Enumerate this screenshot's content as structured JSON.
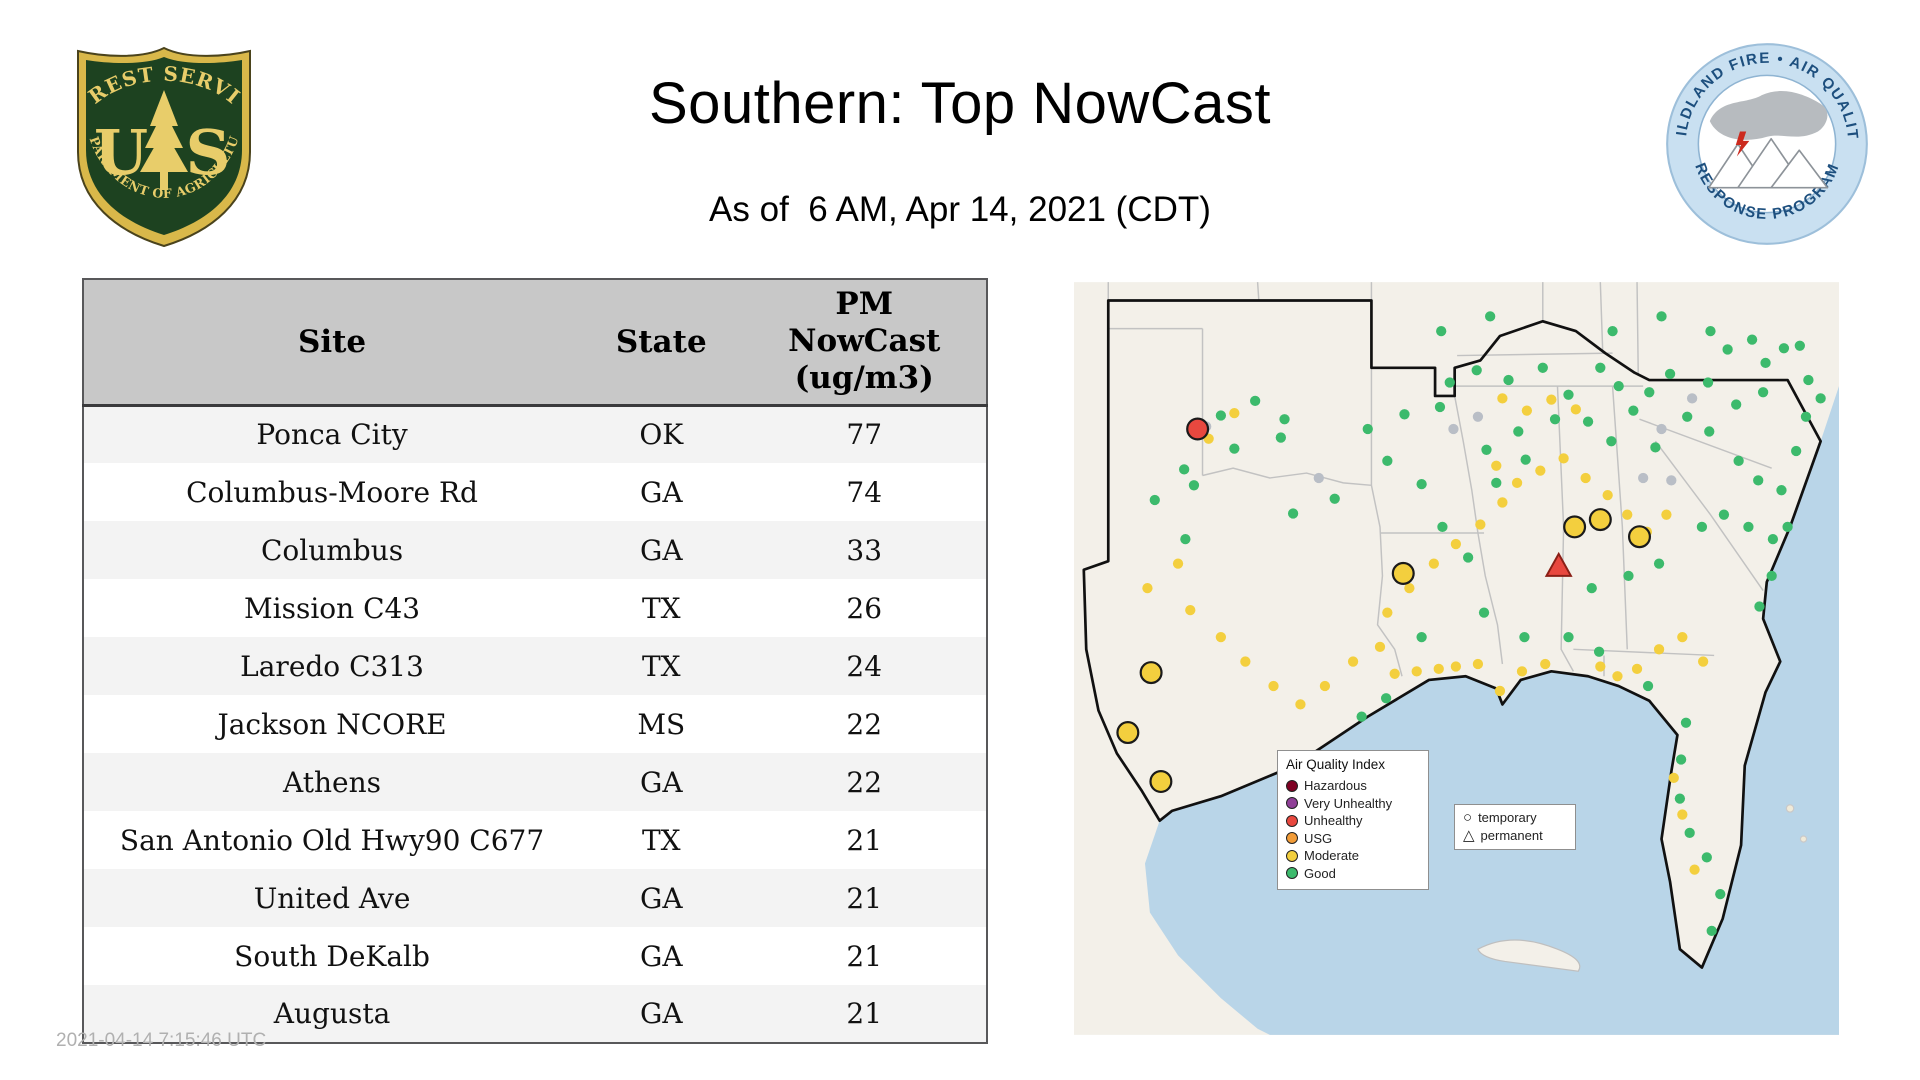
{
  "header": {
    "title": "Southern: Top NowCast",
    "subtitle": "As of  6 AM, Apr 14, 2021 (CDT)"
  },
  "logos": {
    "usfs": {
      "arc_top": "FOREST SERVICE",
      "letter_u": "U",
      "letter_s": "S",
      "arc_bottom": "DEPARTMENT OF AGRICULTURE"
    },
    "wfaqrp": {
      "arc_top": "WILDLAND FIRE • AIR QUALITY",
      "arc_bottom": "RESPONSE PROGRAM"
    }
  },
  "table": {
    "headers": [
      "Site",
      "State",
      "PM NowCast (ug/m3)"
    ],
    "header_pm_lines": [
      "PM",
      "NowCast",
      "(ug/m3)"
    ],
    "rows": [
      [
        "Ponca City",
        "OK",
        "77"
      ],
      [
        "Columbus-Moore Rd",
        "GA",
        "74"
      ],
      [
        "Columbus",
        "GA",
        "33"
      ],
      [
        "Mission C43",
        "TX",
        "26"
      ],
      [
        "Laredo C313",
        "TX",
        "24"
      ],
      [
        "Jackson NCORE",
        "MS",
        "22"
      ],
      [
        "Athens",
        "GA",
        "22"
      ],
      [
        "San Antonio Old Hwy90 C677",
        "TX",
        "21"
      ],
      [
        "United Ave",
        "GA",
        "21"
      ],
      [
        "South DeKalb",
        "GA",
        "21"
      ],
      [
        "Augusta",
        "GA",
        "21"
      ]
    ]
  },
  "map": {
    "colors": {
      "hazardous": "#7e0023",
      "very_unhealthy": "#8f3f97",
      "unhealthy": "#e8483f",
      "usg": "#f29c38",
      "moderate": "#f3cf3e",
      "good": "#3cba6c",
      "no_data": "#b9bec6",
      "ocean": "#b9d5e8",
      "land": "#f3f0e9"
    },
    "legend": {
      "title": "Air Quality Index",
      "items": [
        {
          "label": "Hazardous",
          "color": "#7e0023",
          "icon": "hazardous-dot-icon"
        },
        {
          "label": "Very Unhealthy",
          "color": "#8f3f97",
          "icon": "very-unhealthy-dot-icon"
        },
        {
          "label": "Unhealthy",
          "color": "#e8483f",
          "icon": "unhealthy-dot-icon"
        },
        {
          "label": "USG",
          "color": "#f29c38",
          "icon": "usg-dot-icon"
        },
        {
          "label": "Moderate",
          "color": "#f3cf3e",
          "icon": "moderate-dot-icon"
        },
        {
          "label": "Good",
          "color": "#3cba6c",
          "icon": "good-dot-icon"
        }
      ]
    },
    "shape_legend": {
      "items": [
        {
          "label": "temporary",
          "glyph": "○",
          "icon": "temporary-circle-icon"
        },
        {
          "label": "permanent",
          "glyph": "△",
          "icon": "permanent-triangle-icon"
        }
      ]
    },
    "markers": {
      "good": [
        [
          66,
          178
        ],
        [
          90,
          153
        ],
        [
          98,
          166
        ],
        [
          120,
          109
        ],
        [
          131,
          136
        ],
        [
          148,
          97
        ],
        [
          169,
          127
        ],
        [
          172,
          112
        ],
        [
          179,
          189
        ],
        [
          91,
          210
        ],
        [
          213,
          177
        ],
        [
          235,
          355
        ],
        [
          240,
          120
        ],
        [
          255,
          340
        ],
        [
          256,
          146
        ],
        [
          270,
          108
        ],
        [
          284,
          165
        ],
        [
          284,
          290
        ],
        [
          299,
          102
        ],
        [
          300,
          40
        ],
        [
          301,
          200
        ],
        [
          307,
          82
        ],
        [
          322,
          225
        ],
        [
          329,
          72
        ],
        [
          335,
          270
        ],
        [
          337,
          137
        ],
        [
          340,
          28
        ],
        [
          345,
          164
        ],
        [
          355,
          80
        ],
        [
          363,
          122
        ],
        [
          368,
          290
        ],
        [
          369,
          145
        ],
        [
          383,
          70
        ],
        [
          393,
          112
        ],
        [
          404,
          92
        ],
        [
          404,
          290
        ],
        [
          420,
          114
        ],
        [
          423,
          250
        ],
        [
          429,
          302
        ],
        [
          430,
          70
        ],
        [
          439,
          130
        ],
        [
          440,
          40
        ],
        [
          445,
          85
        ],
        [
          453,
          240
        ],
        [
          457,
          105
        ],
        [
          469,
          330
        ],
        [
          470,
          90
        ],
        [
          475,
          135
        ],
        [
          478,
          230
        ],
        [
          496,
          390
        ],
        [
          480,
          28
        ],
        [
          487,
          75
        ],
        [
          500,
          360
        ],
        [
          495,
          422
        ],
        [
          501,
          110
        ],
        [
          503,
          450
        ],
        [
          513,
          200
        ],
        [
          517,
          470
        ],
        [
          518,
          82
        ],
        [
          519,
          122
        ],
        [
          520,
          40
        ],
        [
          521,
          530
        ],
        [
          528,
          500
        ],
        [
          531,
          190
        ],
        [
          534,
          55
        ],
        [
          541,
          100
        ],
        [
          543,
          146
        ],
        [
          551,
          200
        ],
        [
          554,
          47
        ],
        [
          559,
          162
        ],
        [
          560,
          265
        ],
        [
          563,
          90
        ],
        [
          565,
          66
        ],
        [
          570,
          240
        ],
        [
          571,
          210
        ],
        [
          578,
          170
        ],
        [
          580,
          54
        ],
        [
          583,
          200
        ],
        [
          590,
          138
        ],
        [
          593,
          52
        ],
        [
          598,
          110
        ],
        [
          600,
          80
        ],
        [
          610,
          95
        ]
      ],
      "moderate": [
        [
          60,
          250
        ],
        [
          85,
          230
        ],
        [
          95,
          268
        ],
        [
          110,
          128
        ],
        [
          120,
          290
        ],
        [
          131,
          107
        ],
        [
          140,
          310
        ],
        [
          163,
          330
        ],
        [
          185,
          345
        ],
        [
          205,
          330
        ],
        [
          228,
          310
        ],
        [
          250,
          298
        ],
        [
          256,
          270
        ],
        [
          262,
          320
        ],
        [
          274,
          250
        ],
        [
          280,
          318
        ],
        [
          294,
          230
        ],
        [
          298,
          316
        ],
        [
          312,
          214
        ],
        [
          312,
          314
        ],
        [
          330,
          312
        ],
        [
          332,
          198
        ],
        [
          345,
          150
        ],
        [
          348,
          334
        ],
        [
          350,
          95
        ],
        [
          350,
          180
        ],
        [
          362,
          164
        ],
        [
          366,
          318
        ],
        [
          370,
          105
        ],
        [
          381,
          154
        ],
        [
          385,
          312
        ],
        [
          390,
          96
        ],
        [
          400,
          144
        ],
        [
          410,
          104
        ],
        [
          418,
          160
        ],
        [
          430,
          314
        ],
        [
          436,
          174
        ],
        [
          444,
          322
        ],
        [
          452,
          190
        ],
        [
          460,
          316
        ],
        [
          468,
          204
        ],
        [
          478,
          300
        ],
        [
          484,
          190
        ],
        [
          490,
          405
        ],
        [
          497,
          290
        ],
        [
          497,
          435
        ],
        [
          507,
          480
        ],
        [
          514,
          310
        ]
      ],
      "no_data": [
        [
          108,
          118
        ],
        [
          200,
          160
        ],
        [
          310,
          120
        ],
        [
          330,
          110
        ],
        [
          465,
          160
        ],
        [
          480,
          120
        ],
        [
          488,
          162
        ],
        [
          505,
          95
        ]
      ],
      "moderate_large": [
        [
          269,
          238
        ],
        [
          409,
          200
        ],
        [
          430,
          194
        ],
        [
          462,
          208
        ],
        [
          63,
          319
        ],
        [
          44,
          368
        ],
        [
          71,
          408
        ]
      ],
      "unhealthy_large": [
        [
          101,
          120
        ]
      ],
      "permanent_triangle": [
        [
          396,
          233
        ]
      ]
    }
  },
  "meta": {
    "watermark": "2021-04-14 7:15:46 UTC"
  }
}
